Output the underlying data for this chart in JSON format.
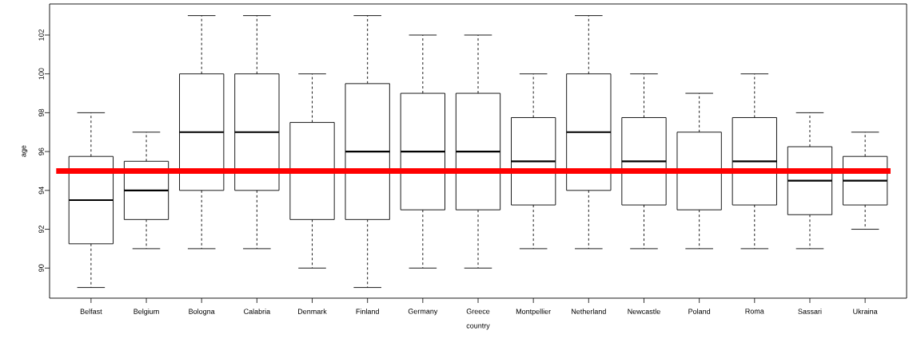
{
  "chart_data": {
    "type": "box",
    "xlabel": "country",
    "ylabel": "age",
    "categories": [
      "Belfast",
      "Belgium",
      "Bologna",
      "Calabria",
      "Denmark",
      "Finland",
      "Germany",
      "Greece",
      "Montpellier",
      "Netherland",
      "Newcastle",
      "Poland",
      "Roma",
      "Sassari",
      "Ukraina"
    ],
    "boxes": [
      {
        "low": 89,
        "q1": 91.25,
        "median": 93.5,
        "q3": 95.75,
        "high": 98
      },
      {
        "low": 91,
        "q1": 92.5,
        "median": 94,
        "q3": 95.5,
        "high": 97
      },
      {
        "low": 91,
        "q1": 94,
        "median": 97,
        "q3": 100,
        "high": 103
      },
      {
        "low": 91,
        "q1": 94,
        "median": 97,
        "q3": 100,
        "high": 103
      },
      {
        "low": 90,
        "q1": 92.5,
        "median": 95,
        "q3": 97.5,
        "high": 100
      },
      {
        "low": 89,
        "q1": 92.5,
        "median": 96,
        "q3": 99.5,
        "high": 103
      },
      {
        "low": 90,
        "q1": 93,
        "median": 96,
        "q3": 99,
        "high": 102
      },
      {
        "low": 90,
        "q1": 93,
        "median": 96,
        "q3": 99,
        "high": 102
      },
      {
        "low": 91,
        "q1": 93.25,
        "median": 95.5,
        "q3": 97.75,
        "high": 100
      },
      {
        "low": 91,
        "q1": 94,
        "median": 97,
        "q3": 100,
        "high": 103
      },
      {
        "low": 91,
        "q1": 93.25,
        "median": 95.5,
        "q3": 97.75,
        "high": 100
      },
      {
        "low": 91,
        "q1": 93,
        "median": 95,
        "q3": 97,
        "high": 99
      },
      {
        "low": 91,
        "q1": 93.25,
        "median": 95.5,
        "q3": 97.75,
        "high": 100
      },
      {
        "low": 91,
        "q1": 92.75,
        "median": 94.5,
        "q3": 96.25,
        "high": 98
      },
      {
        "low": 92,
        "q1": 93.25,
        "median": 94.5,
        "q3": 95.75,
        "high": 97
      }
    ],
    "ylim": [
      88.45,
      103.6
    ],
    "yticks": [
      90,
      92,
      94,
      96,
      98,
      100,
      102
    ],
    "ref_lines": [
      {
        "axis": "y",
        "value": 95,
        "color": "#ff0000"
      }
    ]
  }
}
